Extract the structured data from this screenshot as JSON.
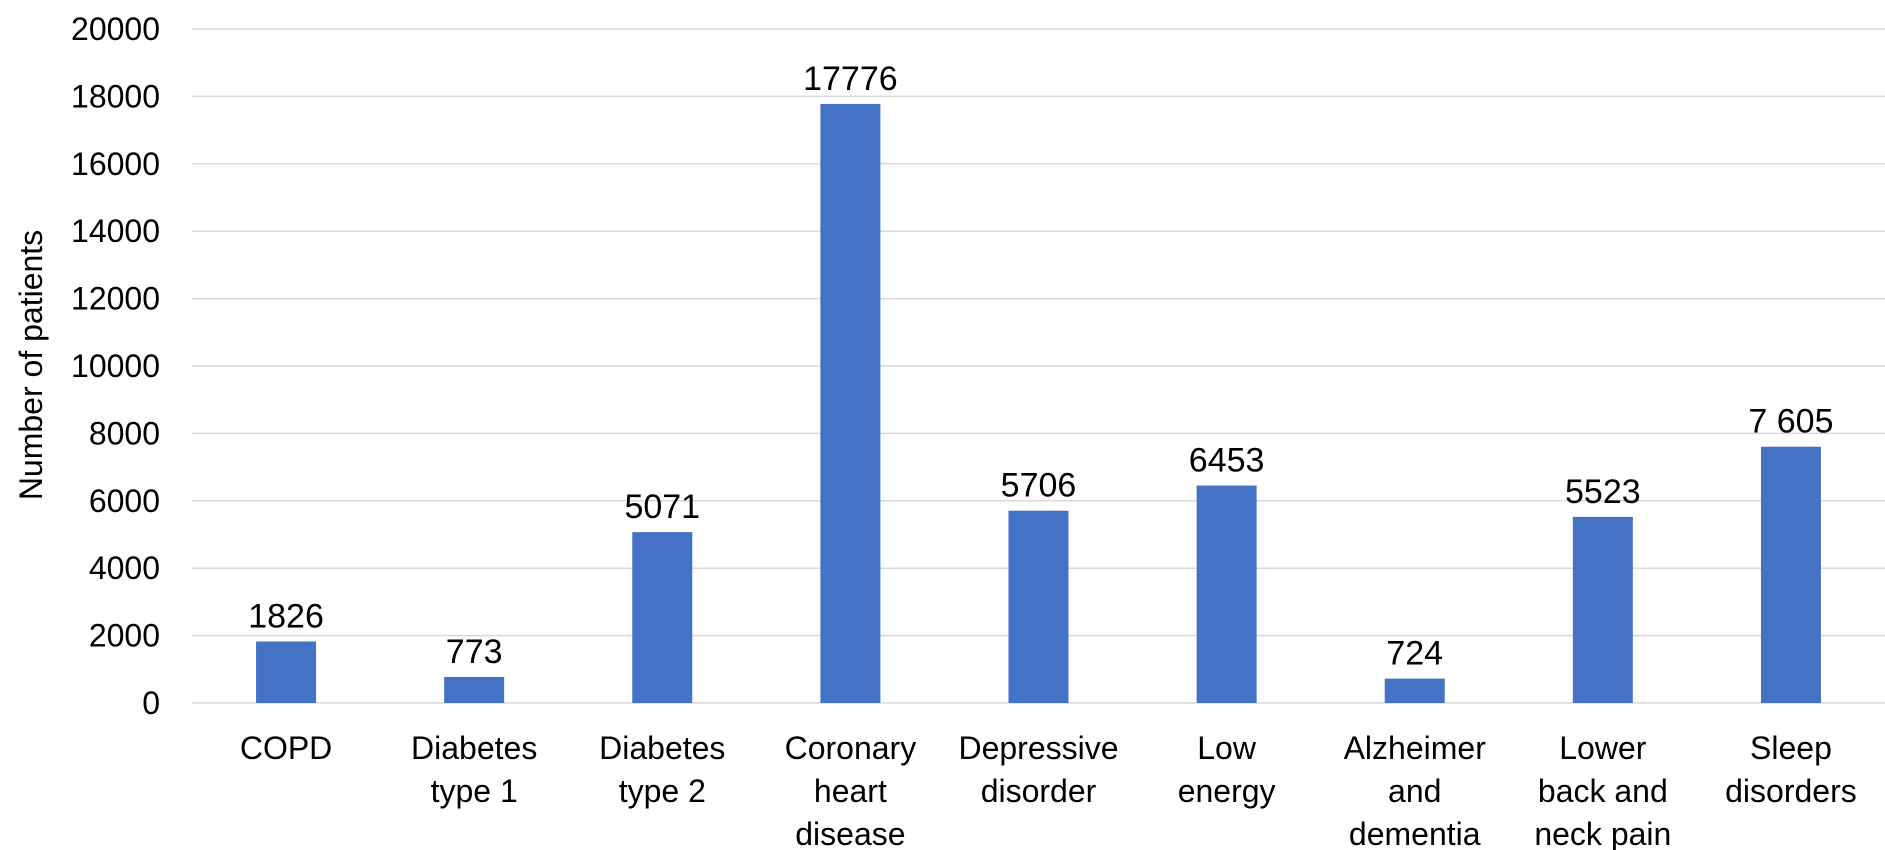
{
  "chart_data": {
    "type": "bar",
    "title": "",
    "xlabel": "",
    "ylabel": "Number of patients",
    "ylim": [
      0,
      20000
    ],
    "yticks": [
      0,
      2000,
      4000,
      6000,
      8000,
      10000,
      12000,
      14000,
      16000,
      18000,
      20000
    ],
    "ytick_labels": [
      "0",
      "2000",
      "4000",
      "6000",
      "8000",
      "10000",
      "12000",
      "14000",
      "16000",
      "18000",
      "20000"
    ],
    "grid": true,
    "legend": "none",
    "categories": [
      [
        "COPD"
      ],
      [
        "Diabetes",
        "type 1"
      ],
      [
        "Diabetes",
        "type 2"
      ],
      [
        "Coronary",
        "heart",
        "disease"
      ],
      [
        "Depressive",
        "disorder"
      ],
      [
        "Low",
        "energy"
      ],
      [
        "Alzheimer",
        "and",
        "dementia"
      ],
      [
        "Lower",
        "back and",
        "neck pain"
      ],
      [
        "Sleep",
        "disorders"
      ]
    ],
    "values": [
      1826,
      773,
      5071,
      17776,
      5706,
      6453,
      724,
      5523,
      7605
    ],
    "data_labels": [
      "1826",
      "773",
      "5071",
      "17776",
      "5706",
      "6453",
      "724",
      "5523",
      "7 605"
    ],
    "colors": {
      "bar": "#4472c4",
      "grid": "#d9d9d9"
    }
  }
}
